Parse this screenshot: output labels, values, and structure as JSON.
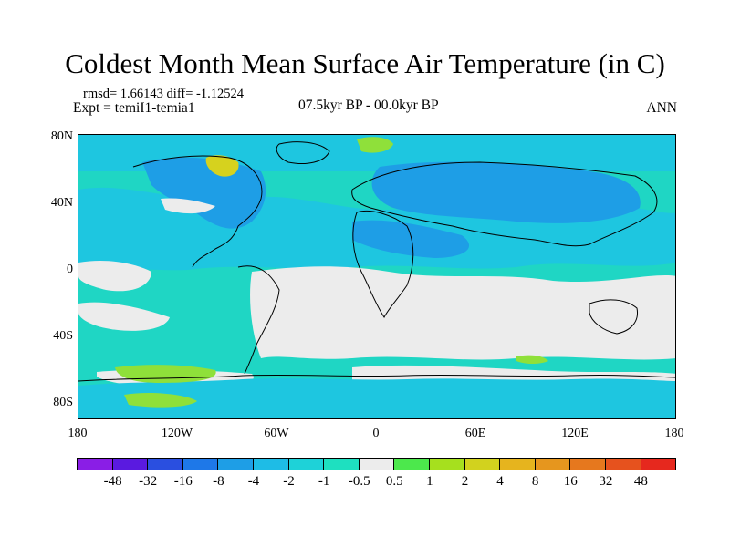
{
  "title": "Coldest Month Mean Surface Air Temperature (in C)",
  "stats": "rmsd= 1.66143 diff= -1.12524",
  "experiment": "Expt = temiI1-temia1",
  "period": "07.5kyr BP - 00.0kyr BP",
  "season": "ANN",
  "y_tick_labels": [
    "80N",
    "40N",
    "0",
    "40S",
    "80S"
  ],
  "x_tick_labels": [
    "180",
    "120W",
    "60W",
    "0",
    "60E",
    "120E",
    "180"
  ],
  "colorbar": {
    "colors": [
      "#8a1ee6",
      "#5a1ae0",
      "#2a4fe0",
      "#1e78e8",
      "#1e9ee6",
      "#1ebce6",
      "#1ed2d8",
      "#1ee0c0",
      "#ececec",
      "#4ce84c",
      "#a6e01e",
      "#d2d21e",
      "#e6b41e",
      "#e6961e",
      "#e6781e",
      "#e6521e",
      "#e6281e"
    ],
    "labels": [
      "-48",
      "-32",
      "-16",
      "-8",
      "-4",
      "-2",
      "-1",
      "-0.5",
      "0.5",
      "1",
      "2",
      "4",
      "8",
      "16",
      "32",
      "48"
    ]
  },
  "map_colors": {
    "ocean_base": "#1fd6c4",
    "cyan_mid": "#1ec6e0",
    "blue_mid": "#1e9ee6",
    "near_zero": "#ececec",
    "pos_green": "#8fe03a",
    "pos_yellow": "#d6d21e",
    "coast": "#000000"
  }
}
